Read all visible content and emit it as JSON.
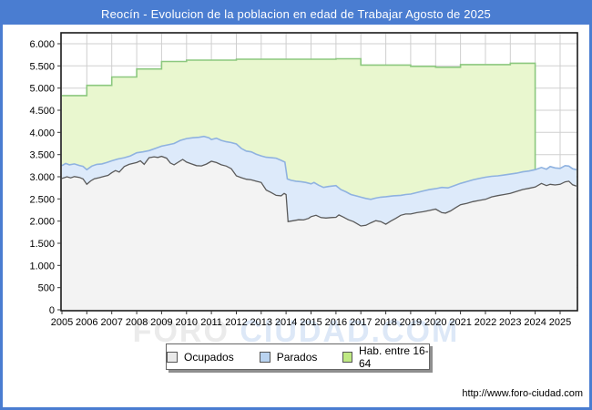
{
  "window": {
    "title": "Reocín - Evolucion de la poblacion en edad de Trabajar Agosto de 2025"
  },
  "colors": {
    "accent_blue": "#4a7dd1",
    "gridline": "#cfcfcf",
    "plot_border": "#1a1a1a",
    "ocupados_fill": "#f3f3f3",
    "ocupados_line": "#5a5a5a",
    "parados_fill": "#ddeafa",
    "parados_line": "#8fb2e0",
    "hab_fill": "#e9f7cf",
    "hab_line": "#8cc87f"
  },
  "watermark": {
    "part1": "FORO",
    "part2": "CIUDAD.COM"
  },
  "legend": {
    "items": [
      {
        "label": "Ocupados",
        "swatch": "#e9e9e9"
      },
      {
        "label": "Parados",
        "swatch": "#b9d3f0"
      },
      {
        "label": "Hab. entre 16-64",
        "swatch": "#bfe983"
      }
    ]
  },
  "footer": {
    "url": "http://www.foro-ciudad.com"
  },
  "chart_data": {
    "type": "area",
    "title": "Reocín - Evolucion de la poblacion en edad de Trabajar Agosto de 2025",
    "stacked": true,
    "grid": true,
    "legend_position": "bottom",
    "x_start": 2005,
    "x_end": 2025.65,
    "ylim": [
      0,
      6000
    ],
    "y_ticks": [
      {
        "value": 0,
        "label": "0"
      },
      {
        "value": 500,
        "label": "500"
      },
      {
        "value": 1000,
        "label": "1.000"
      },
      {
        "value": 1500,
        "label": "1.500"
      },
      {
        "value": 2000,
        "label": "2.000"
      },
      {
        "value": 2500,
        "label": "2.500"
      },
      {
        "value": 3000,
        "label": "3.000"
      },
      {
        "value": 3500,
        "label": "3.500"
      },
      {
        "value": 4000,
        "label": "4.000"
      },
      {
        "value": 4500,
        "label": "4.500"
      },
      {
        "value": 5000,
        "label": "5.000"
      },
      {
        "value": 5500,
        "label": "5.500"
      },
      {
        "value": 6000,
        "label": "6.000"
      }
    ],
    "x_ticks": [
      "2005",
      "2006",
      "2007",
      "2008",
      "2009",
      "2010",
      "2011",
      "2012",
      "2013",
      "2014",
      "2015",
      "2016",
      "2017",
      "2018",
      "2019",
      "2020",
      "2021",
      "2022",
      "2023",
      "2024",
      "2025"
    ],
    "series": [
      {
        "name": "Hab. entre 16-64",
        "render": "step-area",
        "note": "annual padron values, steps at each January; value collapses to the Parados boundary from 2024 on",
        "points": [
          [
            2005,
            4830
          ],
          [
            2006,
            5060
          ],
          [
            2007,
            5250
          ],
          [
            2008,
            5430
          ],
          [
            2009,
            5600
          ],
          [
            2010,
            5630
          ],
          [
            2011,
            5630
          ],
          [
            2012,
            5650
          ],
          [
            2013,
            5650
          ],
          [
            2014,
            5650
          ],
          [
            2015,
            5650
          ],
          [
            2016,
            5660
          ],
          [
            2017,
            5520
          ],
          [
            2018,
            5520
          ],
          [
            2019,
            5490
          ],
          [
            2020,
            5470
          ],
          [
            2021,
            5530
          ],
          [
            2022,
            5530
          ],
          [
            2023,
            5560
          ],
          [
            2024,
            3150
          ],
          [
            2025,
            3150
          ]
        ]
      },
      {
        "name": "Parados",
        "render": "area",
        "note": "points are the stacked top boundary = Ocupados + Parados",
        "points": [
          [
            2005.0,
            3250
          ],
          [
            2005.15,
            3300
          ],
          [
            2005.3,
            3270
          ],
          [
            2005.5,
            3290
          ],
          [
            2005.7,
            3255
          ],
          [
            2005.85,
            3235
          ],
          [
            2006.0,
            3160
          ],
          [
            2006.2,
            3240
          ],
          [
            2006.4,
            3280
          ],
          [
            2006.6,
            3290
          ],
          [
            2006.8,
            3320
          ],
          [
            2007.0,
            3360
          ],
          [
            2007.25,
            3400
          ],
          [
            2007.5,
            3430
          ],
          [
            2007.75,
            3470
          ],
          [
            2008.0,
            3540
          ],
          [
            2008.25,
            3560
          ],
          [
            2008.5,
            3590
          ],
          [
            2008.75,
            3640
          ],
          [
            2009.0,
            3690
          ],
          [
            2009.25,
            3720
          ],
          [
            2009.5,
            3750
          ],
          [
            2009.75,
            3820
          ],
          [
            2010.0,
            3860
          ],
          [
            2010.25,
            3880
          ],
          [
            2010.5,
            3890
          ],
          [
            2010.7,
            3910
          ],
          [
            2010.9,
            3880
          ],
          [
            2011.0,
            3840
          ],
          [
            2011.2,
            3870
          ],
          [
            2011.4,
            3820
          ],
          [
            2011.6,
            3790
          ],
          [
            2011.8,
            3770
          ],
          [
            2012.0,
            3740
          ],
          [
            2012.2,
            3640
          ],
          [
            2012.4,
            3580
          ],
          [
            2012.6,
            3560
          ],
          [
            2012.8,
            3510
          ],
          [
            2013.0,
            3470
          ],
          [
            2013.2,
            3440
          ],
          [
            2013.4,
            3430
          ],
          [
            2013.6,
            3420
          ],
          [
            2013.8,
            3370
          ],
          [
            2013.95,
            3330
          ],
          [
            2014.05,
            2950
          ],
          [
            2014.2,
            2920
          ],
          [
            2014.4,
            2900
          ],
          [
            2014.6,
            2890
          ],
          [
            2014.8,
            2870
          ],
          [
            2015.0,
            2840
          ],
          [
            2015.12,
            2870
          ],
          [
            2015.3,
            2810
          ],
          [
            2015.5,
            2760
          ],
          [
            2015.7,
            2780
          ],
          [
            2015.85,
            2790
          ],
          [
            2016.0,
            2800
          ],
          [
            2016.2,
            2710
          ],
          [
            2016.4,
            2660
          ],
          [
            2016.6,
            2600
          ],
          [
            2016.8,
            2570
          ],
          [
            2017.0,
            2540
          ],
          [
            2017.2,
            2510
          ],
          [
            2017.4,
            2490
          ],
          [
            2017.6,
            2520
          ],
          [
            2017.8,
            2540
          ],
          [
            2018.0,
            2550
          ],
          [
            2018.3,
            2570
          ],
          [
            2018.6,
            2580
          ],
          [
            2018.8,
            2600
          ],
          [
            2019.0,
            2610
          ],
          [
            2019.3,
            2650
          ],
          [
            2019.5,
            2680
          ],
          [
            2019.75,
            2710
          ],
          [
            2020.0,
            2730
          ],
          [
            2020.25,
            2760
          ],
          [
            2020.5,
            2750
          ],
          [
            2020.75,
            2800
          ],
          [
            2021.0,
            2850
          ],
          [
            2021.25,
            2890
          ],
          [
            2021.5,
            2930
          ],
          [
            2021.75,
            2960
          ],
          [
            2022.0,
            2990
          ],
          [
            2022.25,
            3010
          ],
          [
            2022.5,
            3020
          ],
          [
            2022.75,
            3040
          ],
          [
            2023.0,
            3060
          ],
          [
            2023.25,
            3080
          ],
          [
            2023.5,
            3110
          ],
          [
            2023.75,
            3130
          ],
          [
            2024.0,
            3160
          ],
          [
            2024.25,
            3210
          ],
          [
            2024.45,
            3170
          ],
          [
            2024.6,
            3230
          ],
          [
            2024.8,
            3200
          ],
          [
            2025.0,
            3190
          ],
          [
            2025.2,
            3250
          ],
          [
            2025.35,
            3240
          ],
          [
            2025.5,
            3180
          ],
          [
            2025.65,
            3160
          ]
        ]
      },
      {
        "name": "Ocupados",
        "render": "area",
        "points": [
          [
            2005.0,
            2960
          ],
          [
            2005.2,
            3000
          ],
          [
            2005.35,
            2975
          ],
          [
            2005.5,
            3005
          ],
          [
            2005.7,
            2985
          ],
          [
            2005.85,
            2950
          ],
          [
            2006.0,
            2830
          ],
          [
            2006.15,
            2905
          ],
          [
            2006.3,
            2955
          ],
          [
            2006.5,
            2980
          ],
          [
            2006.7,
            3010
          ],
          [
            2006.85,
            3030
          ],
          [
            2007.0,
            3090
          ],
          [
            2007.15,
            3140
          ],
          [
            2007.3,
            3105
          ],
          [
            2007.5,
            3230
          ],
          [
            2007.7,
            3280
          ],
          [
            2007.85,
            3300
          ],
          [
            2008.0,
            3320
          ],
          [
            2008.15,
            3360
          ],
          [
            2008.3,
            3280
          ],
          [
            2008.5,
            3430
          ],
          [
            2008.7,
            3450
          ],
          [
            2008.85,
            3435
          ],
          [
            2009.0,
            3460
          ],
          [
            2009.2,
            3420
          ],
          [
            2009.35,
            3310
          ],
          [
            2009.5,
            3270
          ],
          [
            2009.7,
            3340
          ],
          [
            2009.85,
            3390
          ],
          [
            2010.0,
            3330
          ],
          [
            2010.2,
            3290
          ],
          [
            2010.4,
            3250
          ],
          [
            2010.6,
            3245
          ],
          [
            2010.8,
            3285
          ],
          [
            2011.0,
            3350
          ],
          [
            2011.2,
            3320
          ],
          [
            2011.4,
            3270
          ],
          [
            2011.6,
            3240
          ],
          [
            2011.8,
            3180
          ],
          [
            2012.0,
            3020
          ],
          [
            2012.2,
            2980
          ],
          [
            2012.4,
            2945
          ],
          [
            2012.6,
            2930
          ],
          [
            2012.8,
            2900
          ],
          [
            2013.0,
            2870
          ],
          [
            2013.2,
            2700
          ],
          [
            2013.4,
            2645
          ],
          [
            2013.6,
            2580
          ],
          [
            2013.8,
            2570
          ],
          [
            2013.92,
            2625
          ],
          [
            2014.0,
            2600
          ],
          [
            2014.08,
            1990
          ],
          [
            2014.3,
            2010
          ],
          [
            2014.5,
            2030
          ],
          [
            2014.7,
            2025
          ],
          [
            2014.9,
            2060
          ],
          [
            2015.0,
            2100
          ],
          [
            2015.2,
            2130
          ],
          [
            2015.4,
            2080
          ],
          [
            2015.6,
            2070
          ],
          [
            2015.8,
            2080
          ],
          [
            2016.0,
            2085
          ],
          [
            2016.12,
            2140
          ],
          [
            2016.3,
            2090
          ],
          [
            2016.5,
            2030
          ],
          [
            2016.7,
            1990
          ],
          [
            2016.85,
            1940
          ],
          [
            2017.0,
            1890
          ],
          [
            2017.2,
            1905
          ],
          [
            2017.4,
            1960
          ],
          [
            2017.6,
            2010
          ],
          [
            2017.8,
            1990
          ],
          [
            2018.0,
            1930
          ],
          [
            2018.2,
            2000
          ],
          [
            2018.4,
            2060
          ],
          [
            2018.6,
            2130
          ],
          [
            2018.8,
            2160
          ],
          [
            2019.0,
            2160
          ],
          [
            2019.25,
            2190
          ],
          [
            2019.5,
            2210
          ],
          [
            2019.75,
            2240
          ],
          [
            2020.0,
            2270
          ],
          [
            2020.25,
            2190
          ],
          [
            2020.4,
            2180
          ],
          [
            2020.6,
            2230
          ],
          [
            2020.8,
            2300
          ],
          [
            2021.0,
            2370
          ],
          [
            2021.25,
            2400
          ],
          [
            2021.5,
            2440
          ],
          [
            2021.75,
            2465
          ],
          [
            2022.0,
            2490
          ],
          [
            2022.25,
            2545
          ],
          [
            2022.5,
            2575
          ],
          [
            2022.75,
            2600
          ],
          [
            2023.0,
            2625
          ],
          [
            2023.25,
            2670
          ],
          [
            2023.5,
            2712
          ],
          [
            2023.75,
            2740
          ],
          [
            2024.0,
            2767
          ],
          [
            2024.25,
            2850
          ],
          [
            2024.45,
            2800
          ],
          [
            2024.6,
            2830
          ],
          [
            2024.8,
            2815
          ],
          [
            2025.0,
            2829
          ],
          [
            2025.2,
            2884
          ],
          [
            2025.35,
            2900
          ],
          [
            2025.5,
            2820
          ],
          [
            2025.65,
            2790
          ]
        ]
      }
    ]
  }
}
